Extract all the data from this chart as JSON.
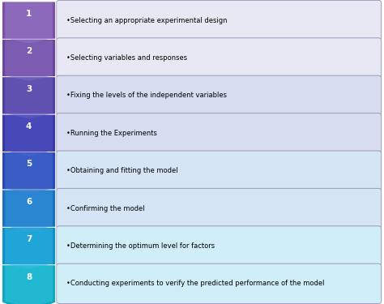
{
  "steps": [
    {
      "num": "1",
      "text": "•Selecting an appropriate experimental design",
      "arrow_color": "#7B4FA8",
      "arrow_light": "#9B7FCC",
      "box_color": "#E8E8F4"
    },
    {
      "num": "2",
      "text": "•Selecting variables and responses",
      "arrow_color": "#6A45A0",
      "arrow_light": "#8A70C0",
      "box_color": "#E8E8F4"
    },
    {
      "num": "3",
      "text": "•Fixing the levels of the independent variables",
      "arrow_color": "#5040A0",
      "arrow_light": "#7060C0",
      "box_color": "#D8DCF0"
    },
    {
      "num": "4",
      "text": "•Running the Experiments",
      "arrow_color": "#3838A8",
      "arrow_light": "#5858C8",
      "box_color": "#D8DCF0"
    },
    {
      "num": "5",
      "text": "•Obtaining and fitting the model",
      "arrow_color": "#2848B8",
      "arrow_light": "#4870D0",
      "box_color": "#D5E5F5"
    },
    {
      "num": "6",
      "text": "•Confirming the model",
      "arrow_color": "#1870C0",
      "arrow_light": "#3898DC",
      "box_color": "#D5E5F5"
    },
    {
      "num": "7",
      "text": "•Determining the optimum level for factors",
      "arrow_color": "#1090C8",
      "arrow_light": "#30B8E8",
      "box_color": "#D0EEF8"
    },
    {
      "num": "8",
      "text": "•Conducting experiments to verify the predicted performance of the model",
      "arrow_color": "#10A8C0",
      "arrow_light": "#30C8E0",
      "box_color": "#D0EEF8"
    }
  ],
  "background_color": "#FFFFFF",
  "text_color": "#000000",
  "num_color": "#FFFFFF",
  "box_border_color": "#9999BB",
  "figsize": [
    4.74,
    3.75
  ],
  "dpi": 100
}
